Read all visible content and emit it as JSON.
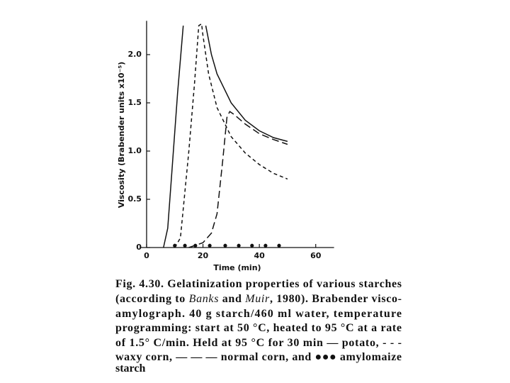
{
  "chart_data": {
    "type": "line",
    "x_label": "Time (min)",
    "y_label": "Viscosity (Brabender units x10⁻⁵)",
    "xlim": [
      -2,
      66
    ],
    "xticks": [
      0,
      20,
      40,
      60
    ],
    "ylim": [
      0,
      2.35
    ],
    "yticks": [
      0,
      0.5,
      {
        "value": 1,
        "label": "1.0"
      },
      1.5,
      {
        "value": 2,
        "label": "2.0"
      }
    ],
    "color": "#111111",
    "series": [
      {
        "style": "solid",
        "x": [
          6,
          7.5,
          9,
          11,
          13,
          18,
          21,
          23,
          25,
          30,
          35,
          40,
          45,
          50
        ],
        "values": [
          0,
          0.2,
          0.8,
          1.6,
          2.3,
          null,
          2.3,
          2.0,
          1.8,
          1.5,
          1.32,
          1.21,
          1.14,
          1.1
        ]
      },
      {
        "style": "short-dash",
        "x": [
          10,
          12,
          13,
          15,
          17,
          18.5,
          19.5,
          20,
          22,
          25,
          30,
          35,
          40,
          45,
          50
        ],
        "values": [
          0,
          0.1,
          0.4,
          1.0,
          1.7,
          2.3,
          2.32,
          2.2,
          1.8,
          1.45,
          1.15,
          0.98,
          0.86,
          0.77,
          0.71
        ]
      },
      {
        "style": "long-dash",
        "x": [
          15,
          20,
          23,
          25,
          27,
          28.5,
          29.5,
          31,
          35,
          40,
          45,
          50
        ],
        "values": [
          0,
          0.05,
          0.15,
          0.35,
          0.9,
          1.35,
          1.41,
          1.38,
          1.28,
          1.18,
          1.12,
          1.07
        ]
      },
      {
        "style": "dots",
        "x": [
          10,
          13.6,
          17.3,
          22.4,
          27.9,
          32.7,
          37.4,
          42.2,
          47
        ],
        "values": [
          0.02,
          0.02,
          0.02,
          0.02,
          0.02,
          0.02,
          0.02,
          0.02,
          0.02
        ]
      }
    ]
  },
  "caption": {
    "lines": [
      [
        {
          "text": "Fig. 4.30.",
          "bold": true
        },
        " Gelatinization properties of various starches"
      ],
      [
        "(according to ",
        {
          "text": "Banks",
          "italic": true
        },
        " and ",
        {
          "text": "Muir",
          "italic": true
        },
        ", 1980). Brabender visco-"
      ],
      [
        "amylograph. 40 g starch/460 ml water, temperature"
      ],
      [
        "programming: start at 50 °C, heated to 95 °C at a rate"
      ],
      [
        "of 1.5° C/min. Held at 95 °C for 30 min — potato, - - -"
      ],
      [
        "waxy corn, — — — normal corn, and ●●● amylomaize"
      ],
      [
        "starch"
      ]
    ]
  }
}
